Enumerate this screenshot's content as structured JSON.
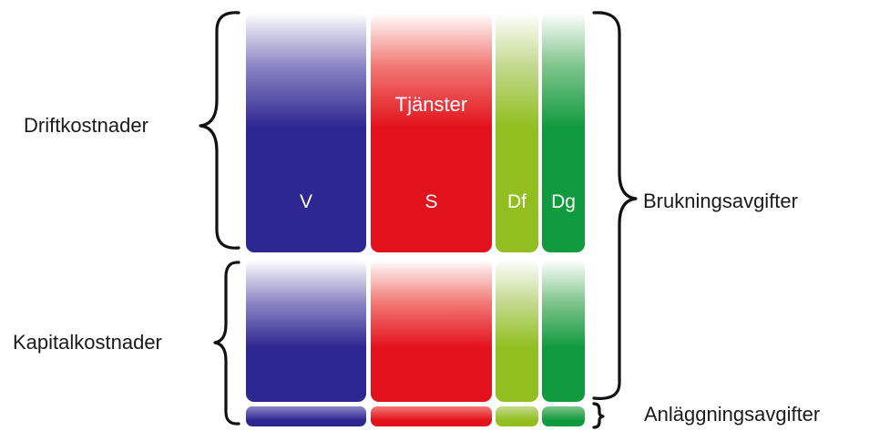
{
  "labels": {
    "left_top": "Driftkostnader",
    "left_bottom": "Kapitalkostnader",
    "right_main": "Brukningsavgifter",
    "right_small": "Anläggningsavgifter"
  },
  "columns": [
    {
      "key": "v",
      "label": "V",
      "color": "#2d2791"
    },
    {
      "key": "s",
      "label": "S",
      "color": "#e3111b",
      "overlay_label": "Tjänster"
    },
    {
      "key": "df",
      "label": "Df",
      "color": "#92bf1f"
    },
    {
      "key": "dg",
      "label": "Dg",
      "color": "#109a3e"
    }
  ]
}
